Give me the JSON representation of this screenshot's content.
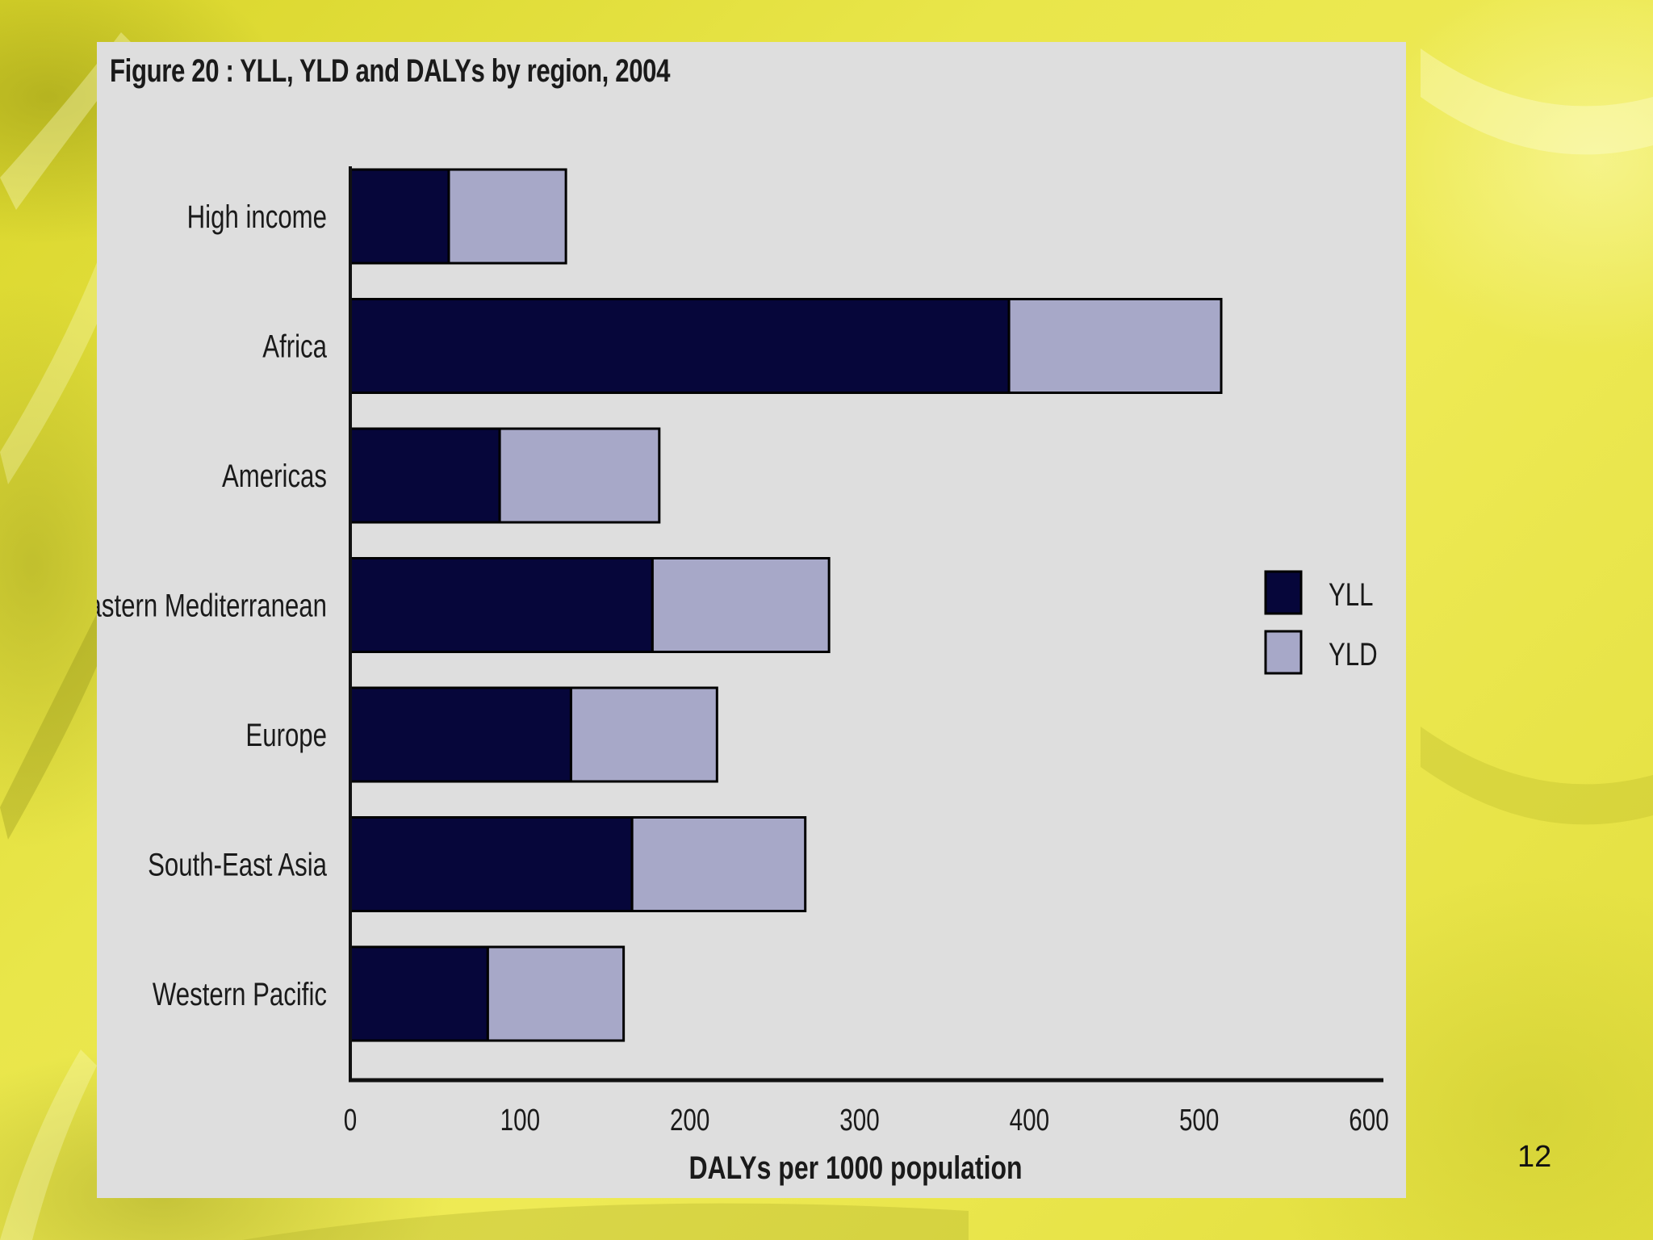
{
  "slide": {
    "page_number": "12"
  },
  "chart_data": {
    "type": "bar",
    "orientation": "horizontal",
    "stacked": true,
    "title": "Figure 20 : YLL, YLD and DALYs by region, 2004",
    "xlabel": "DALYs per 1000 population",
    "ylabel": "",
    "xlim": [
      0,
      600
    ],
    "x_ticks": [
      "0",
      "100",
      "200",
      "300",
      "400",
      "500",
      "600"
    ],
    "categories": [
      "High income",
      "Africa",
      "Americas",
      "Eastern Mediterranean",
      "Europe",
      "South-East Asia",
      "Western Pacific"
    ],
    "series": [
      {
        "name": "YLL",
        "color": "#06063a",
        "values": [
          58,
          388,
          88,
          178,
          130,
          166,
          81
        ]
      },
      {
        "name": "YLD",
        "color": "#a7a8c8",
        "values": [
          69,
          125,
          94,
          104,
          86,
          102,
          80
        ]
      }
    ],
    "legend": {
      "position": "right",
      "entries": [
        "YLL",
        "YLD"
      ]
    },
    "grid": false
  },
  "colors": {
    "panel": "#dedede",
    "axis": "#111111",
    "text": "#1a1a1a"
  }
}
